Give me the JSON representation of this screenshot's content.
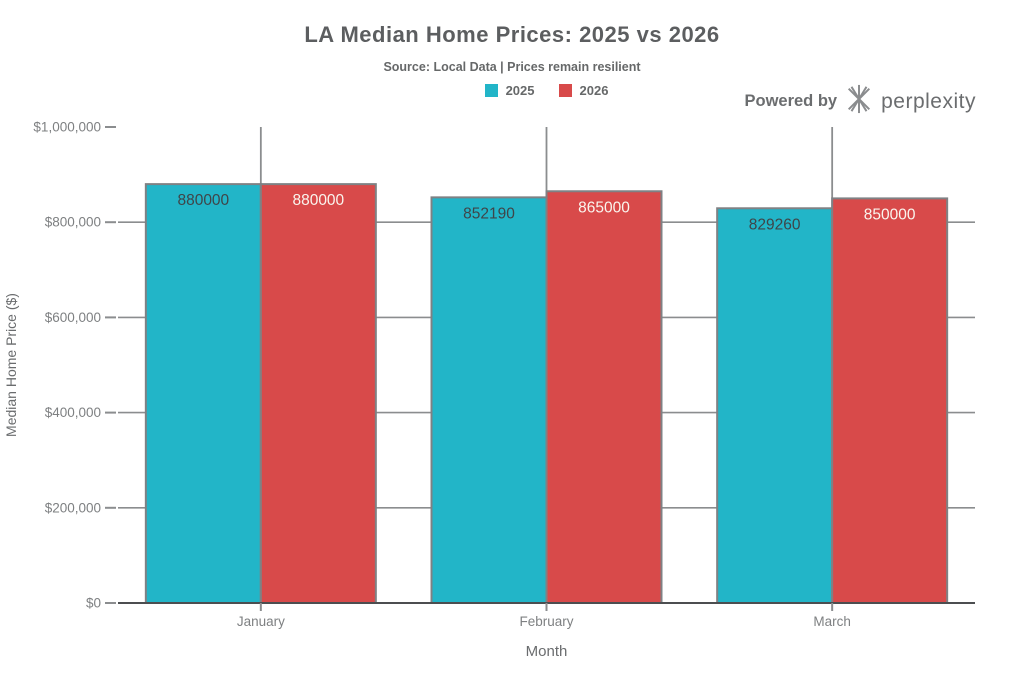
{
  "header": {
    "title": "LA Median Home Prices: 2025 vs 2026",
    "subtitle": "Source: Local Data | Prices remain resilient"
  },
  "branding": {
    "powered_by_label": "Powered by",
    "brand_name": "perplexity",
    "logo_icon": "perplexity-asterisk-icon",
    "color": "#6b6d6f"
  },
  "chart_data": {
    "type": "bar",
    "title": "LA Median Home Prices: 2025 vs 2026",
    "subtitle": "Source: Local Data | Prices remain resilient",
    "xlabel": "Month",
    "ylabel": "Median Home Price ($)",
    "categories": [
      "January",
      "February",
      "March"
    ],
    "series": [
      {
        "name": "2025",
        "color": "#22b5c8",
        "value_label_color": "#3f4549",
        "values": [
          880000,
          852190,
          829260
        ]
      },
      {
        "name": "2026",
        "color": "#d84a4a",
        "value_label_color": "#faf5ee",
        "values": [
          880000,
          865000,
          850000
        ]
      }
    ],
    "ylim": [
      0,
      1000000
    ],
    "yticks": [
      {
        "value": 0,
        "label": "$0"
      },
      {
        "value": 200000,
        "label": "$200,000"
      },
      {
        "value": 400000,
        "label": "$400,000"
      },
      {
        "value": 600000,
        "label": "$600,000"
      },
      {
        "value": 800000,
        "label": "$800,000"
      },
      {
        "value": 1000000,
        "label": "$1,000,000"
      }
    ],
    "grid": "horizontal gridlines at y-ticks and vertical gridlines at category centers",
    "legend_position": "top-center",
    "bar_value_labels": "raw integer shown inside top of each bar",
    "styles": {
      "bar_border_color": "#7f8184",
      "grid_color": "#8b8d8f",
      "axis_line_color": "#4c4e50",
      "tick_label_color": "#7e8082",
      "axis_title_color": "#6a6c6e"
    }
  }
}
